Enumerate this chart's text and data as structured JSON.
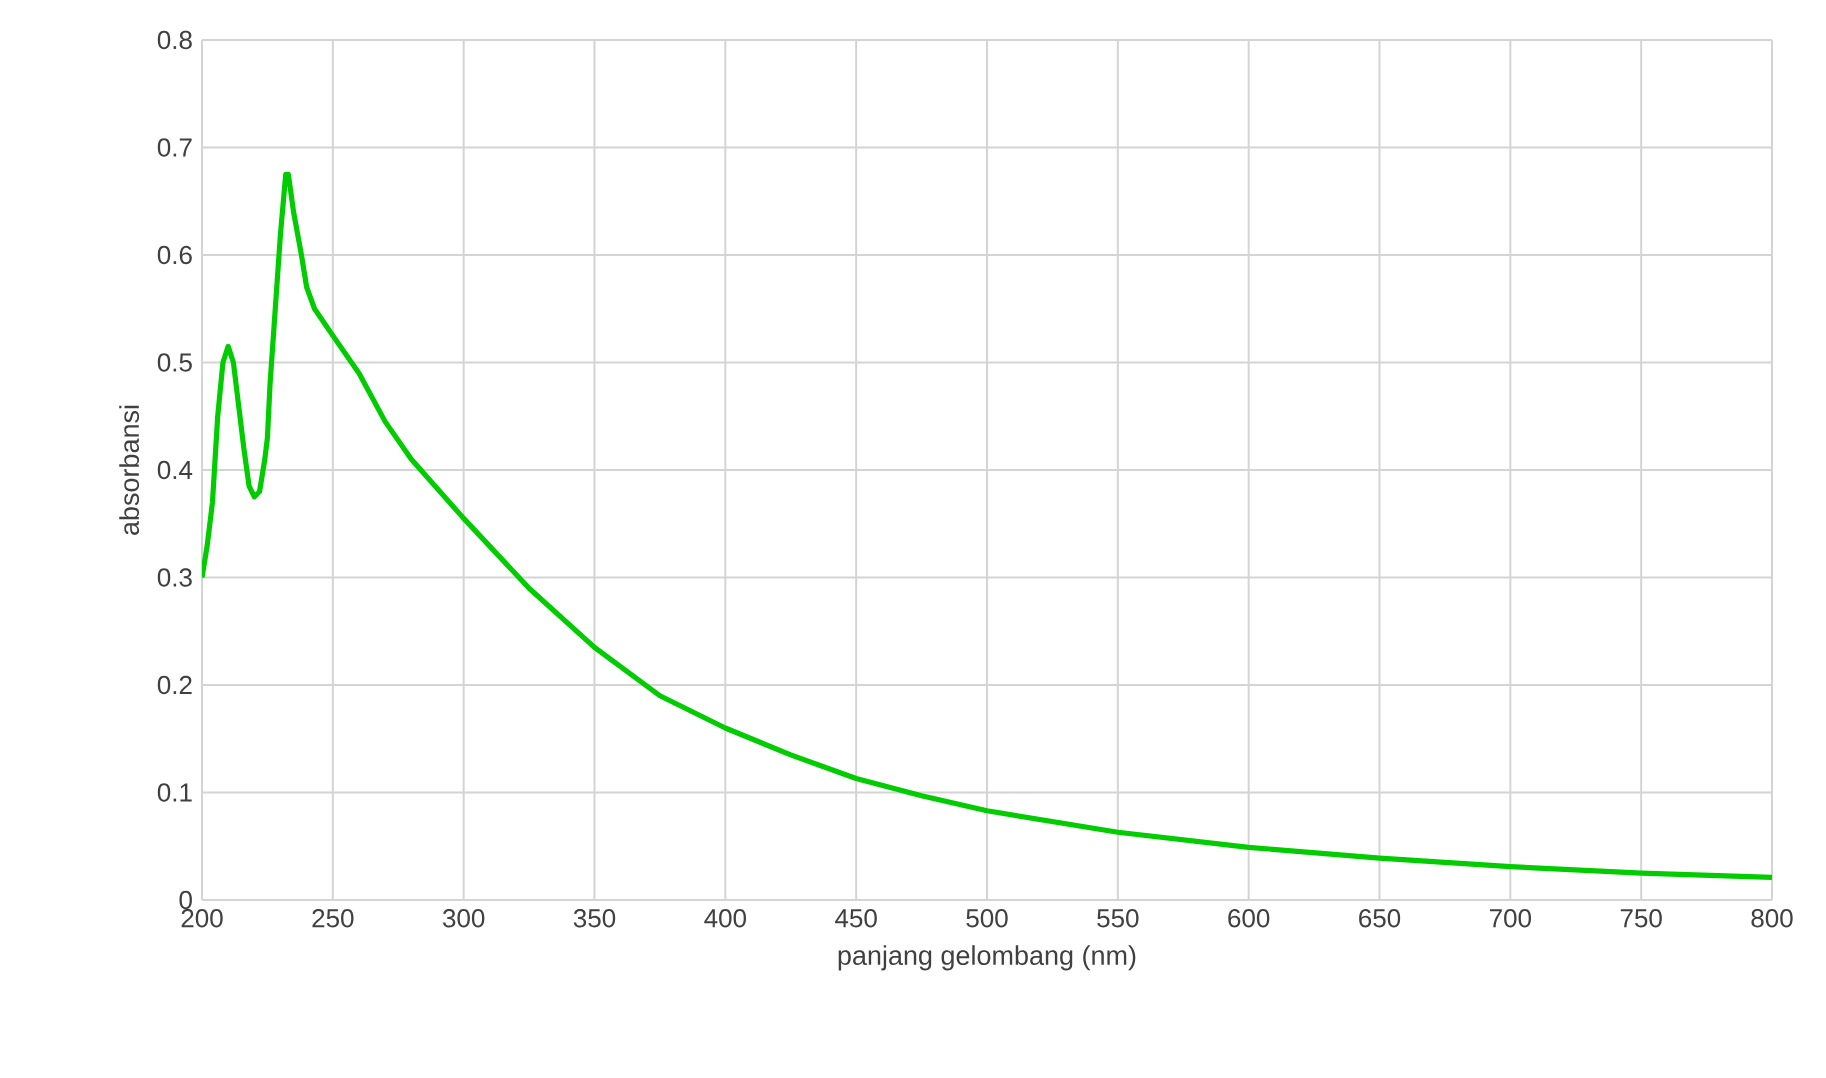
{
  "chart_data": {
    "type": "line",
    "xlabel": "panjang gelombang (nm)",
    "ylabel": "absorbansi",
    "x": [
      200,
      202,
      204,
      206,
      208,
      210,
      212,
      214,
      216,
      218,
      220,
      222,
      224,
      225,
      226,
      228,
      230,
      232,
      233,
      235,
      238,
      240,
      243,
      250,
      260,
      270,
      280,
      300,
      325,
      350,
      375,
      400,
      425,
      450,
      475,
      500,
      550,
      600,
      650,
      700,
      750,
      800
    ],
    "series": [
      {
        "color": "#00cc00",
        "values": [
          0.3,
          0.33,
          0.37,
          0.45,
          0.5,
          0.515,
          0.5,
          0.46,
          0.42,
          0.385,
          0.375,
          0.38,
          0.41,
          0.43,
          0.48,
          0.55,
          0.62,
          0.675,
          0.675,
          0.64,
          0.6,
          0.57,
          0.55,
          0.525,
          0.49,
          0.445,
          0.41,
          0.355,
          0.29,
          0.235,
          0.19,
          0.16,
          0.135,
          0.113,
          0.097,
          0.083,
          0.063,
          0.049,
          0.039,
          0.031,
          0.025,
          0.021
        ]
      }
    ],
    "xlim": [
      200,
      800
    ],
    "ylim": [
      0,
      0.8
    ],
    "xticks": [
      200,
      250,
      300,
      350,
      400,
      450,
      500,
      550,
      600,
      650,
      700,
      750,
      800
    ],
    "yticks": [
      0,
      0.1,
      0.2,
      0.3,
      0.4,
      0.5,
      0.6,
      0.7,
      0.8
    ],
    "grid": true,
    "marker": "none",
    "line_style": "solid"
  }
}
